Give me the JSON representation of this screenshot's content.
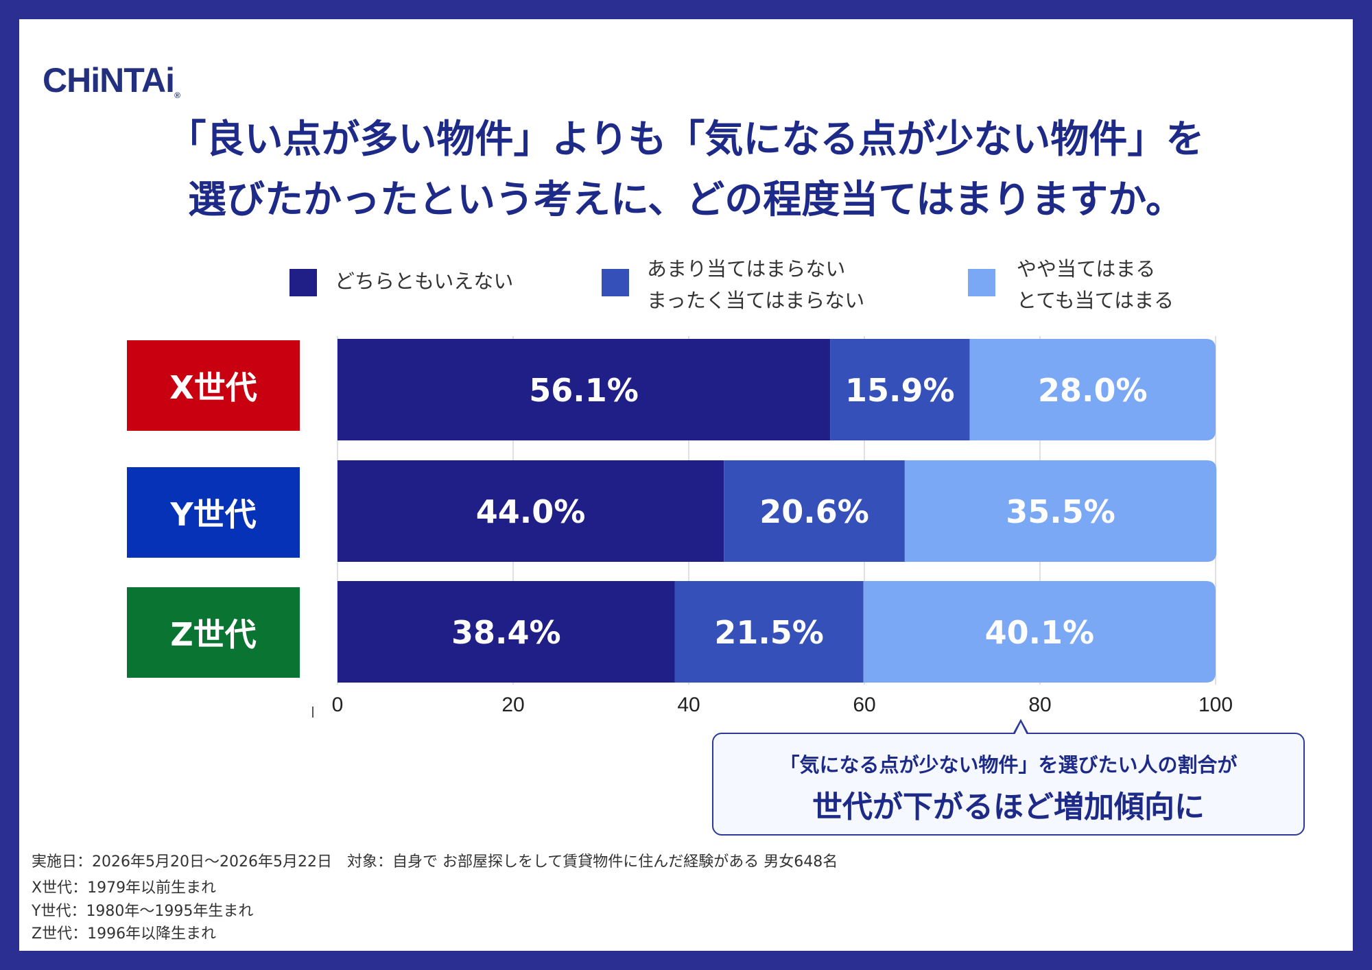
{
  "logo": "CHiNTAi",
  "logo_mark": "®",
  "title_line1": "「良い点が多い物件」よりも「気になる点が少ない物件」を",
  "title_line2": "選びたかったという考えに、どの程度当てはまりますか。",
  "legend": [
    {
      "line1": "どちらともいえない",
      "line2": "",
      "color": "#1f1f87"
    },
    {
      "line1": "あまり当てはまらない",
      "line2": "まったく当てはまらない",
      "color": "#3550b8"
    },
    {
      "line1": "やや当てはまる",
      "line2": "とても当てはまる",
      "color": "#7aa8f5"
    }
  ],
  "category_colors": [
    "#c8000f",
    "#0532b7",
    "#0a7432"
  ],
  "chart_data": {
    "type": "bar",
    "orientation": "horizontal",
    "stacked": true,
    "categories": [
      "X世代",
      "Y世代",
      "Z世代"
    ],
    "series": [
      {
        "name": "どちらともいえない",
        "values": [
          56.1,
          44.0,
          38.4
        ],
        "labels": [
          "56.1%",
          "44.0%",
          "38.4%"
        ]
      },
      {
        "name": "あまり当てはまらない／まったく当てはまらない",
        "values": [
          15.9,
          20.6,
          21.5
        ],
        "labels": [
          "15.9%",
          "20.6%",
          "21.5%"
        ]
      },
      {
        "name": "やや当てはまる／とても当てはまる",
        "values": [
          28.0,
          35.5,
          40.1
        ],
        "labels": [
          "28.0%",
          "35.5%",
          "40.1%"
        ]
      }
    ],
    "xlim": [
      0,
      100
    ],
    "xticks": [
      "0",
      "20",
      "40",
      "60",
      "80",
      "100"
    ],
    "grid": true,
    "legend_position": "top"
  },
  "annotation": {
    "small": "「気になる点が少ない物件」を選びたい人の割合が",
    "big": "世代が下がるほど増加傾向に"
  },
  "notes": [
    "実施日：2026年5月20日〜2026年5月22日　対象：自身で お部屋探しをして賃貸物件に住んだ経験がある 男女648名",
    "X世代：1979年以前生まれ",
    "Y世代：1980年〜1995年生まれ",
    "Z世代：1996年以降生まれ"
  ]
}
